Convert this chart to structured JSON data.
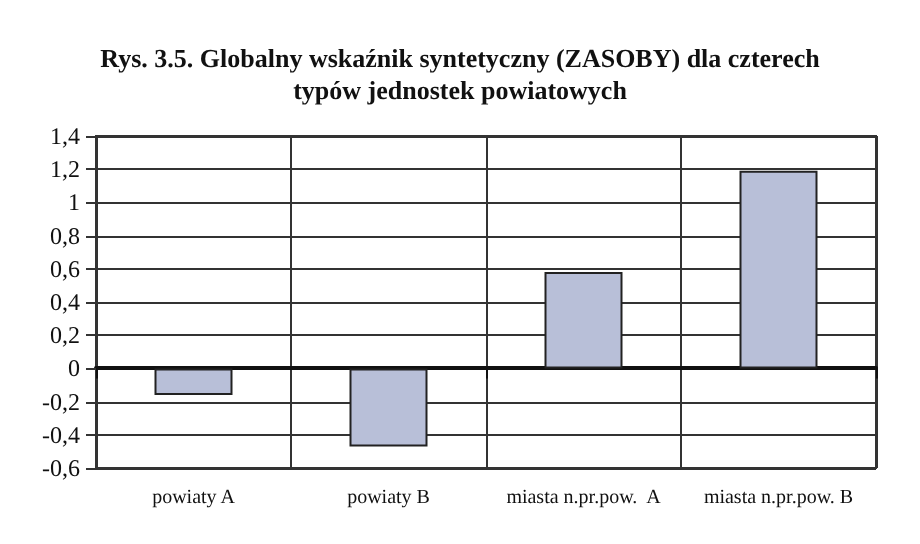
{
  "chart_data": {
    "type": "bar",
    "title": "Rys. 3.5. Globalny wskaźnik syntetyczny (ZASOBY) dla czterech\ntypów jednostek powiatowych",
    "categories": [
      "powiaty A",
      "powiaty B",
      "miasta n.pr.pow.  A",
      "miasta n.pr.pow. B"
    ],
    "values": [
      -0.16,
      -0.47,
      0.58,
      1.19
    ],
    "color": "#b8bfd8",
    "ylim": [
      -0.6,
      1.4
    ],
    "yticks": [
      {
        "value": -0.6,
        "label": "-0,6"
      },
      {
        "value": -0.4,
        "label": "-0,4"
      },
      {
        "value": -0.2,
        "label": "-0,2"
      },
      0,
      {
        "value": 0.2,
        "label": "0,2"
      },
      {
        "value": 0.4,
        "label": "0,4"
      },
      {
        "value": 0.6,
        "label": "0,6"
      },
      {
        "value": 0.8,
        "label": "0,8"
      },
      1,
      {
        "value": 1.2,
        "label": "1,2"
      },
      {
        "value": 1.4,
        "label": "1,4"
      }
    ],
    "grid": true
  }
}
